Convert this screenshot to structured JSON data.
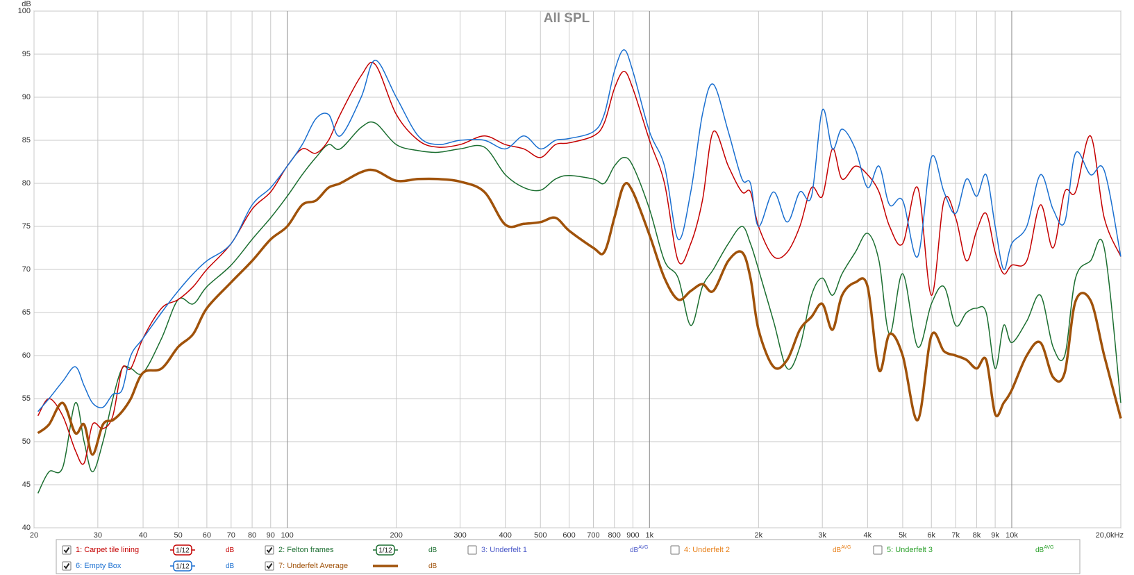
{
  "chart_data": {
    "type": "line",
    "title": "All SPL",
    "y_label": "dB",
    "log_x": true,
    "grid": true,
    "xlim": [
      20,
      20000
    ],
    "ylim": [
      40,
      100
    ],
    "yticks": [
      40,
      45,
      50,
      55,
      60,
      65,
      70,
      75,
      80,
      85,
      90,
      95,
      100
    ],
    "xticks": [
      20,
      30,
      40,
      50,
      60,
      70,
      80,
      90,
      100,
      200,
      300,
      400,
      500,
      600,
      700,
      800,
      900,
      {
        "value": 1000,
        "label": "1k"
      },
      {
        "value": 2000,
        "label": "2k"
      },
      {
        "value": 3000,
        "label": "3k"
      },
      {
        "value": 4000,
        "label": "4k"
      },
      {
        "value": 5000,
        "label": "5k"
      },
      {
        "value": 6000,
        "label": "6k"
      },
      {
        "value": 7000,
        "label": "7k"
      },
      {
        "value": 8000,
        "label": "8k"
      },
      {
        "value": 9000,
        "label": "9k"
      },
      {
        "value": 10000,
        "label": "10k"
      },
      {
        "value": 20000,
        "label": "20,0kHz"
      }
    ],
    "x": [
      20.5,
      22,
      24,
      26,
      27.5,
      29,
      31,
      33,
      35,
      37,
      40,
      45,
      50,
      55,
      60,
      70,
      80,
      90,
      100,
      110,
      120,
      130,
      140,
      160,
      175,
      200,
      230,
      260,
      300,
      350,
      400,
      450,
      500,
      550,
      600,
      700,
      750,
      800,
      850,
      900,
      1000,
      1100,
      1200,
      1300,
      1400,
      1500,
      1650,
      1800,
      1900,
      2000,
      2200,
      2400,
      2600,
      2800,
      3000,
      3200,
      3400,
      3700,
      4000,
      4300,
      4600,
      5000,
      5500,
      6000,
      6500,
      7000,
      7500,
      8000,
      8500,
      9000,
      9500,
      10000,
      11000,
      12000,
      13000,
      14000,
      15000,
      16500,
      18000,
      20000
    ],
    "series": [
      {
        "name": "1: Carpet tile lining",
        "color": "#c40000",
        "visible": true,
        "smoothing": "1/12",
        "unit": "dB",
        "width": 1.5,
        "values": [
          53,
          55,
          53,
          49,
          47.5,
          52,
          51.5,
          53,
          58.5,
          58.5,
          62,
          65.5,
          66.5,
          68,
          70,
          73,
          77,
          79,
          82,
          84,
          83.5,
          85,
          88,
          92.5,
          93.8,
          88,
          85,
          84.2,
          84.5,
          85.5,
          84.5,
          84,
          83,
          84.5,
          84.7,
          85.5,
          87,
          91,
          93,
          91,
          85,
          80,
          71,
          73,
          78,
          86,
          82,
          79,
          79,
          75,
          71.5,
          72,
          75,
          79.5,
          78.5,
          84,
          80.5,
          82,
          81,
          79,
          75,
          73,
          79.5,
          67,
          78,
          76,
          71,
          74.5,
          76.5,
          72,
          69.5,
          70.5,
          71,
          77.5,
          72.5,
          79,
          79,
          85.5,
          76,
          71.5
        ]
      },
      {
        "name": "2: Felton frames",
        "color": "#1b6e30",
        "visible": true,
        "smoothing": "1/12",
        "unit": "dB",
        "width": 1.5,
        "values": [
          44,
          46.5,
          47,
          54.5,
          50,
          46.5,
          50,
          55,
          58.5,
          58.5,
          58,
          62,
          66.5,
          66,
          68,
          70.5,
          73.5,
          76,
          78.5,
          81,
          83,
          84.5,
          84,
          86.5,
          87,
          84.5,
          83.8,
          83.6,
          84,
          84.2,
          81,
          79.5,
          79.2,
          80.5,
          80.9,
          80.5,
          80,
          82,
          83,
          82,
          77,
          71,
          69,
          63.5,
          68,
          70,
          73,
          75,
          73,
          70,
          64,
          58.5,
          61,
          67,
          69,
          67,
          69.5,
          72,
          74.2,
          71,
          62.5,
          69.5,
          61,
          66,
          68,
          63.5,
          65,
          65.5,
          65,
          58.5,
          63.5,
          61.5,
          64,
          67,
          61,
          60,
          69,
          71,
          72.5,
          54.5
        ]
      },
      {
        "name": "3: Underfelt 1",
        "color": "#4a58c8",
        "visible": false,
        "unit": "dB",
        "unit_sup": "AVG"
      },
      {
        "name": "4: Underfelt 2",
        "color": "#e8801a",
        "visible": false,
        "unit": "dB",
        "unit_sup": "AVG"
      },
      {
        "name": "5: Underfelt 3",
        "color": "#2aa02a",
        "visible": false,
        "unit": "dB",
        "unit_sup": "AVG"
      },
      {
        "name": "6: Empty Box",
        "color": "#1a6fd0",
        "visible": true,
        "smoothing": "1/12",
        "unit": "dB",
        "width": 1.5,
        "values": [
          53.5,
          55,
          57,
          58.7,
          56.5,
          54.5,
          54,
          55.5,
          56,
          60,
          62,
          65,
          67.5,
          69.5,
          71,
          73,
          77.5,
          79.5,
          82,
          84.5,
          87.5,
          88,
          85.5,
          90,
          94.3,
          90,
          85.5,
          84.5,
          85,
          85,
          84,
          85.5,
          84,
          85,
          85.2,
          86,
          88,
          93,
          95.5,
          93,
          86,
          82,
          73.5,
          79,
          88,
          91.5,
          86,
          80.5,
          80,
          75,
          79,
          75.5,
          79,
          78.5,
          88.5,
          84,
          86.3,
          84,
          79.5,
          82,
          77.5,
          78,
          71.5,
          83,
          79,
          76.5,
          80.5,
          78.5,
          81,
          75,
          70,
          73,
          75,
          81,
          77,
          75.5,
          83.5,
          81,
          81.5,
          71.5
        ]
      },
      {
        "name": "7: Underfelt Average",
        "color": "#a0520a",
        "visible": true,
        "unit": "dB",
        "width": 3.5,
        "values": [
          51,
          52,
          54.5,
          51,
          52,
          48.5,
          52,
          52.5,
          53.5,
          55,
          58,
          58.5,
          61,
          62.5,
          65.5,
          68.5,
          71,
          73.5,
          75,
          77.5,
          78,
          79.5,
          80,
          81.3,
          81.5,
          80.3,
          80.5,
          80.5,
          80.2,
          79,
          75.2,
          75.3,
          75.5,
          76,
          74.5,
          72.5,
          72,
          76,
          79.8,
          79,
          74,
          69,
          66.5,
          67.5,
          68.3,
          67.5,
          71,
          72,
          69,
          63,
          58.7,
          59.5,
          63,
          64.5,
          66,
          63,
          67,
          68.5,
          68,
          58.3,
          62.5,
          60,
          52.5,
          62.3,
          60.5,
          60,
          59.5,
          58.5,
          59.5,
          53.2,
          54.5,
          56,
          60,
          61.5,
          57.5,
          58,
          66.3,
          66.4,
          60,
          52.7
        ]
      }
    ]
  }
}
